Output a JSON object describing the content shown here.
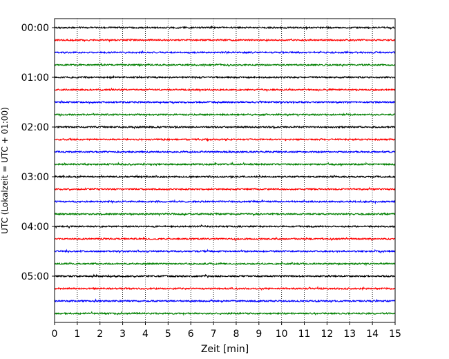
{
  "chart_data": {
    "type": "line",
    "title": "",
    "xlabel": "Zeit  [min]",
    "ylabel": "UTC (Lokalzeit = UTC + 01:00)",
    "xlim": [
      0,
      15
    ],
    "xticks": [
      "0",
      "1",
      "2",
      "3",
      "4",
      "5",
      "6",
      "7",
      "8",
      "9",
      "10",
      "11",
      "12",
      "13",
      "14",
      "15"
    ],
    "yticks": [
      "00:00",
      "01:00",
      "02:00",
      "03:00",
      "04:00",
      "05:00"
    ],
    "grid": "vertical dotted",
    "trace_interval_min": 15,
    "trace_count": 24,
    "trace_colors": [
      "#000000",
      "#ff0000",
      "#0000ff",
      "#008000"
    ],
    "trace_start_times": [
      "00:00",
      "00:15",
      "00:30",
      "00:45",
      "01:00",
      "01:15",
      "01:30",
      "01:45",
      "02:00",
      "02:15",
      "02:30",
      "02:45",
      "03:00",
      "03:15",
      "03:30",
      "03:45",
      "04:00",
      "04:15",
      "04:30",
      "04:45",
      "05:00",
      "05:15",
      "05:30",
      "05:45"
    ]
  }
}
